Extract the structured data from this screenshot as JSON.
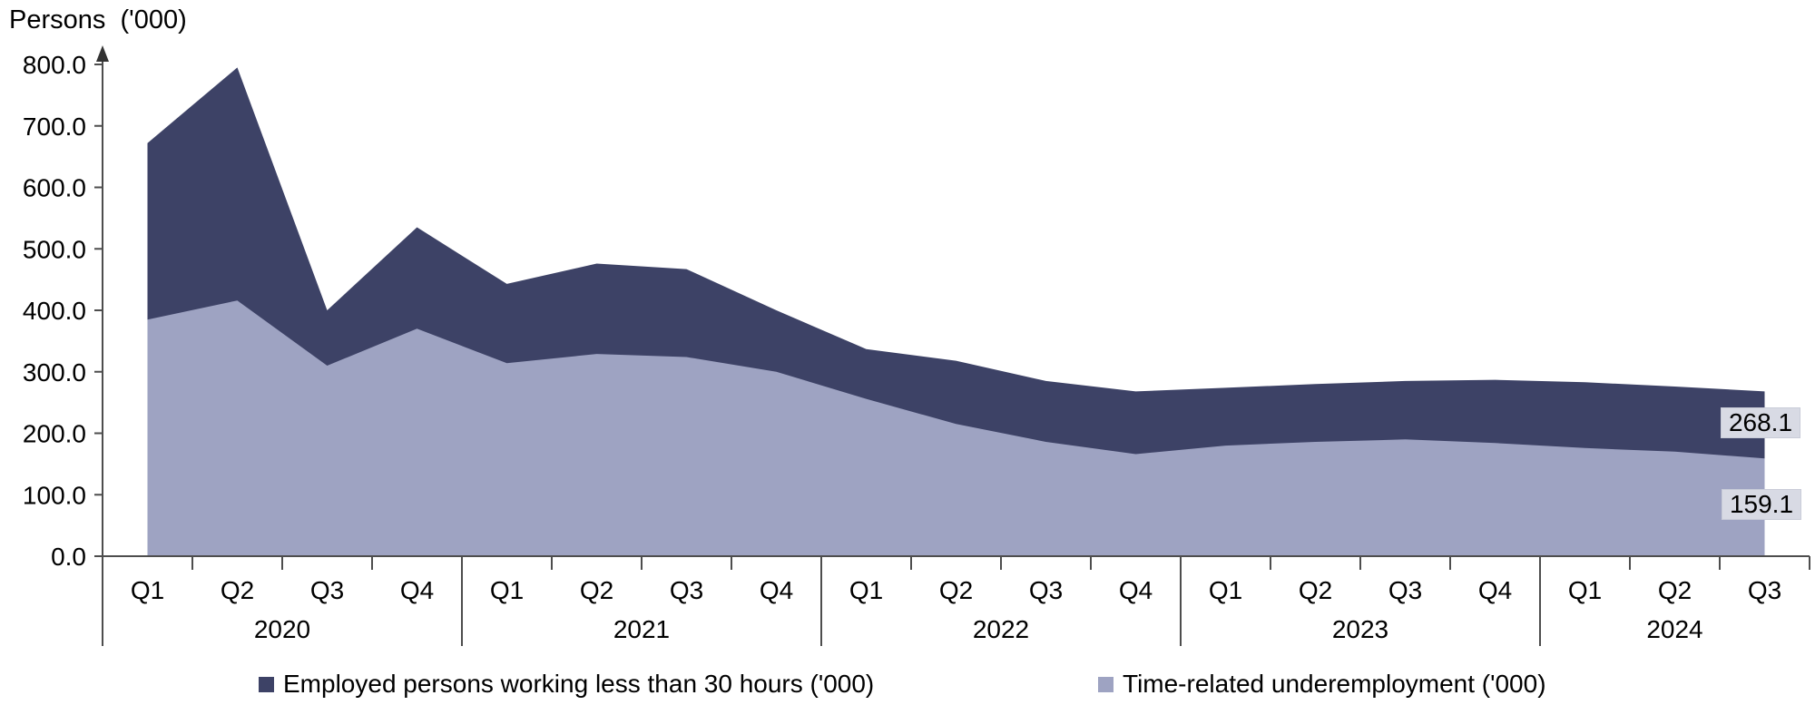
{
  "title": "Persons  ('000)",
  "chart_data": {
    "type": "area",
    "stacked": false,
    "title": "Persons ('000)",
    "ylabel": "Persons ('000)",
    "xlabel": "",
    "ylim": [
      0,
      800
    ],
    "ytick_step": 100,
    "ytick_labels": [
      "0.0",
      "100.0",
      "200.0",
      "300.0",
      "400.0",
      "500.0",
      "600.0",
      "700.0",
      "800.0"
    ],
    "grid": false,
    "legend_position": "bottom",
    "year_groups": [
      {
        "label": "2020",
        "quarter_labels": [
          "Q1",
          "Q2",
          "Q3",
          "Q4"
        ]
      },
      {
        "label": "2021",
        "quarter_labels": [
          "Q1",
          "Q2",
          "Q3",
          "Q4"
        ]
      },
      {
        "label": "2022",
        "quarter_labels": [
          "Q1",
          "Q2",
          "Q3",
          "Q4"
        ]
      },
      {
        "label": "2023",
        "quarter_labels": [
          "Q1",
          "Q2",
          "Q3",
          "Q4"
        ]
      },
      {
        "label": "2024",
        "quarter_labels": [
          "Q1",
          "Q2",
          "Q3"
        ]
      }
    ],
    "series": [
      {
        "name": "Employed persons working less than 30 hours ('000)",
        "color": "#3d4266",
        "values": [
          672,
          795,
          400,
          535,
          443,
          476,
          467,
          400,
          337,
          318,
          285,
          268,
          274,
          280,
          285,
          287,
          283,
          276,
          268.1
        ]
      },
      {
        "name": "Time-related underemployment ('000)",
        "color": "#9ea3c2",
        "values": [
          385,
          416,
          310,
          370,
          314,
          329,
          324,
          300,
          256,
          215,
          186,
          166,
          180,
          186,
          190,
          184,
          176,
          170,
          159.1
        ]
      }
    ],
    "end_labels": [
      {
        "series": "Employed persons working less than 30 hours ('000)",
        "text": "268.1"
      },
      {
        "series": "Time-related underemployment ('000)",
        "text": "159.1"
      }
    ],
    "colors": {
      "axis": "#4d4d4d",
      "text": "#000000",
      "end_label_bg": "#d8dae4"
    }
  }
}
